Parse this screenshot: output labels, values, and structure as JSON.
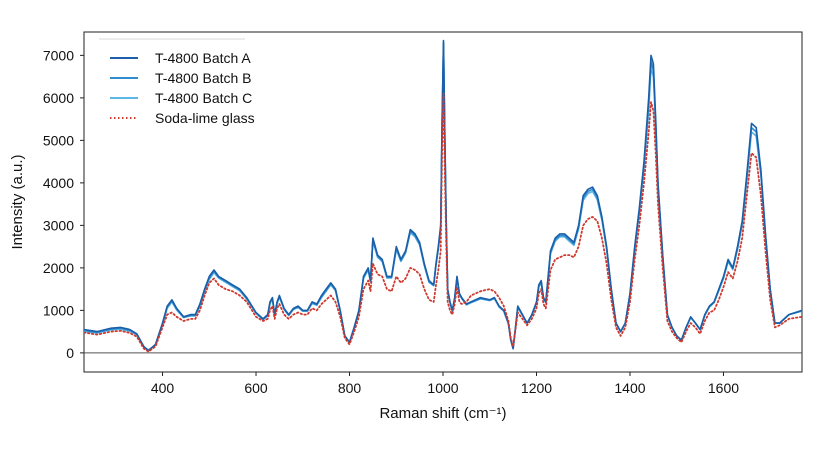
{
  "chart_data": {
    "type": "line",
    "title": "",
    "xlabel": "Raman shift (cm⁻¹)",
    "ylabel": "Intensity (a.u.)",
    "xlim": [
      232,
      1768
    ],
    "ylim": [
      -450,
      7550
    ],
    "x_ticks": [
      400,
      600,
      800,
      1000,
      1200,
      1400,
      1600
    ],
    "y_ticks": [
      0,
      1000,
      2000,
      3000,
      4000,
      5000,
      6000,
      7000
    ],
    "zero_line": 0,
    "grid": false,
    "legend_position": "top-left",
    "x": [
      232,
      260,
      290,
      310,
      330,
      345,
      360,
      370,
      385,
      400,
      410,
      420,
      430,
      445,
      460,
      470,
      480,
      490,
      500,
      510,
      520,
      535,
      550,
      565,
      580,
      600,
      615,
      625,
      630,
      635,
      640,
      645,
      650,
      660,
      670,
      680,
      690,
      700,
      710,
      720,
      730,
      740,
      750,
      760,
      770,
      780,
      790,
      800,
      810,
      820,
      830,
      840,
      845,
      850,
      860,
      870,
      880,
      890,
      900,
      910,
      920,
      930,
      940,
      950,
      960,
      970,
      980,
      985,
      990,
      995,
      998,
      1001,
      1004,
      1007,
      1010,
      1015,
      1020,
      1025,
      1030,
      1035,
      1040,
      1050,
      1060,
      1080,
      1100,
      1110,
      1120,
      1130,
      1140,
      1145,
      1150,
      1155,
      1160,
      1170,
      1180,
      1190,
      1200,
      1205,
      1210,
      1215,
      1220,
      1230,
      1240,
      1250,
      1260,
      1270,
      1280,
      1290,
      1300,
      1310,
      1320,
      1330,
      1340,
      1350,
      1360,
      1370,
      1380,
      1390,
      1400,
      1410,
      1420,
      1430,
      1440,
      1445,
      1450,
      1455,
      1460,
      1470,
      1480,
      1490,
      1500,
      1510,
      1520,
      1530,
      1540,
      1550,
      1560,
      1570,
      1580,
      1590,
      1600,
      1610,
      1620,
      1630,
      1640,
      1650,
      1660,
      1670,
      1680,
      1690,
      1700,
      1710,
      1720,
      1740,
      1768
    ],
    "series": [
      {
        "name": "T-4800 Batch A",
        "color": "#1a5fa8",
        "style": "solid",
        "values": [
          550,
          500,
          580,
          600,
          550,
          450,
          150,
          50,
          200,
          700,
          1100,
          1250,
          1050,
          850,
          900,
          900,
          1150,
          1500,
          1800,
          1950,
          1800,
          1700,
          1600,
          1500,
          1300,
          950,
          800,
          900,
          1200,
          1300,
          900,
          1200,
          1350,
          1050,
          900,
          1050,
          1100,
          1000,
          1000,
          1200,
          1150,
          1350,
          1500,
          1650,
          1500,
          1000,
          400,
          250,
          600,
          1000,
          1800,
          2000,
          1700,
          2700,
          2300,
          2200,
          1800,
          1800,
          2500,
          2200,
          2400,
          2900,
          2800,
          2600,
          2100,
          1700,
          1600,
          2100,
          2500,
          3000,
          5500,
          7350,
          5000,
          3000,
          1500,
          1200,
          1000,
          1300,
          1800,
          1400,
          1300,
          1150,
          1200,
          1300,
          1250,
          1300,
          1100,
          1000,
          700,
          300,
          100,
          600,
          1100,
          900,
          700,
          900,
          1200,
          1600,
          1700,
          1300,
          1200,
          2400,
          2700,
          2800,
          2800,
          2700,
          2600,
          3000,
          3700,
          3850,
          3900,
          3700,
          3200,
          2500,
          1500,
          700,
          500,
          700,
          1400,
          2500,
          3400,
          4500,
          6000,
          7000,
          6800,
          5500,
          4000,
          2300,
          900,
          600,
          400,
          300,
          600,
          850,
          700,
          550,
          900,
          1100,
          1200,
          1500,
          1800,
          2200,
          2000,
          2500,
          3100,
          4200,
          5400,
          5300,
          4300,
          2800,
          1500,
          700,
          700,
          900,
          1000
        ]
      },
      {
        "name": "T-4800 Batch B",
        "color": "#2f8dd0",
        "style": "solid",
        "values": [
          530,
          480,
          560,
          580,
          530,
          440,
          140,
          60,
          190,
          680,
          1080,
          1220,
          1030,
          840,
          880,
          880,
          1120,
          1470,
          1760,
          1920,
          1780,
          1680,
          1580,
          1480,
          1280,
          940,
          790,
          880,
          1180,
          1280,
          890,
          1180,
          1330,
          1030,
          890,
          1030,
          1080,
          990,
          990,
          1180,
          1130,
          1320,
          1470,
          1620,
          1480,
          990,
          400,
          250,
          600,
          990,
          1770,
          1970,
          1680,
          2660,
          2270,
          2170,
          1780,
          1780,
          2460,
          2170,
          2370,
          2860,
          2760,
          2560,
          2070,
          1680,
          1590,
          2080,
          2460,
          2950,
          5400,
          7300,
          4950,
          2950,
          1480,
          1190,
          990,
          1280,
          1770,
          1380,
          1290,
          1140,
          1190,
          1280,
          1240,
          1290,
          1090,
          990,
          690,
          300,
          100,
          590,
          1080,
          890,
          700,
          890,
          1180,
          1570,
          1670,
          1280,
          1190,
          2360,
          2660,
          2760,
          2760,
          2660,
          2560,
          2950,
          3640,
          3800,
          3850,
          3650,
          3160,
          2470,
          1480,
          700,
          500,
          700,
          1380,
          2460,
          3350,
          4420,
          5850,
          6850,
          6650,
          5400,
          3950,
          2280,
          890,
          600,
          400,
          300,
          600,
          840,
          700,
          550,
          890,
          1090,
          1190,
          1480,
          1770,
          2170,
          1980,
          2460,
          3050,
          4120,
          5300,
          5200,
          4230,
          2760,
          1480,
          700,
          700,
          900,
          990
        ]
      },
      {
        "name": "T-4800 Batch C",
        "color": "#5cb6e8",
        "style": "solid",
        "values": [
          500,
          470,
          540,
          560,
          510,
          430,
          130,
          70,
          180,
          660,
          1050,
          1200,
          1010,
          830,
          870,
          870,
          1100,
          1440,
          1730,
          1890,
          1760,
          1660,
          1560,
          1460,
          1260,
          930,
          780,
          870,
          1160,
          1260,
          880,
          1160,
          1310,
          1020,
          880,
          1020,
          1070,
          980,
          980,
          1160,
          1120,
          1300,
          1450,
          1600,
          1460,
          980,
          400,
          250,
          600,
          980,
          1750,
          1950,
          1660,
          2630,
          2250,
          2150,
          1760,
          1760,
          2430,
          2150,
          2350,
          2830,
          2730,
          2540,
          2050,
          1660,
          1580,
          2060,
          2430,
          2920,
          5300,
          7250,
          4900,
          2920,
          1460,
          1180,
          980,
          1260,
          1750,
          1360,
          1280,
          1130,
          1180,
          1270,
          1230,
          1280,
          1080,
          980,
          680,
          300,
          100,
          580,
          1070,
          880,
          700,
          880,
          1170,
          1550,
          1650,
          1270,
          1180,
          2330,
          2630,
          2730,
          2730,
          2630,
          2530,
          2920,
          3590,
          3750,
          3800,
          3600,
          3120,
          2440,
          1460,
          700,
          500,
          700,
          1360,
          2430,
          3300,
          4350,
          5700,
          6700,
          6500,
          5300,
          3900,
          2250,
          880,
          600,
          400,
          300,
          600,
          830,
          700,
          550,
          880,
          1080,
          1180,
          1460,
          1750,
          2150,
          1960,
          2430,
          3020,
          4060,
          5200,
          5100,
          4160,
          2720,
          1460,
          700,
          700,
          900,
          980
        ]
      },
      {
        "name": "Soda-lime glass",
        "color": "#d0392e",
        "style": "dotted",
        "values": [
          480,
          430,
          500,
          520,
          470,
          380,
          100,
          30,
          150,
          600,
          900,
          950,
          850,
          750,
          800,
          800,
          1000,
          1350,
          1650,
          1750,
          1600,
          1500,
          1450,
          1350,
          1200,
          850,
          750,
          800,
          1000,
          1100,
          800,
          1050,
          1150,
          900,
          800,
          900,
          950,
          900,
          900,
          1050,
          1000,
          1150,
          1250,
          1350,
          1200,
          850,
          350,
          200,
          500,
          850,
          1500,
          1700,
          1450,
          2100,
          1850,
          1800,
          1500,
          1450,
          1800,
          1650,
          1750,
          2000,
          1950,
          1850,
          1500,
          1250,
          1200,
          1600,
          1950,
          2400,
          4800,
          6100,
          4200,
          2500,
          1200,
          1000,
          900,
          1150,
          1550,
          1200,
          1150,
          1200,
          1350,
          1450,
          1500,
          1450,
          1300,
          1100,
          750,
          350,
          150,
          550,
          950,
          800,
          650,
          800,
          1050,
          1400,
          1500,
          1150,
          1050,
          1950,
          2200,
          2250,
          2300,
          2300,
          2250,
          2500,
          3000,
          3150,
          3200,
          3100,
          2700,
          2100,
          1250,
          600,
          400,
          600,
          1200,
          2200,
          3000,
          4000,
          5200,
          5900,
          5700,
          4700,
          3500,
          2000,
          750,
          500,
          350,
          250,
          500,
          700,
          600,
          450,
          750,
          950,
          1000,
          1250,
          1550,
          1900,
          1750,
          2150,
          2700,
          3700,
          4700,
          4600,
          3700,
          2400,
          1250,
          600,
          650,
          800,
          850
        ]
      }
    ]
  }
}
